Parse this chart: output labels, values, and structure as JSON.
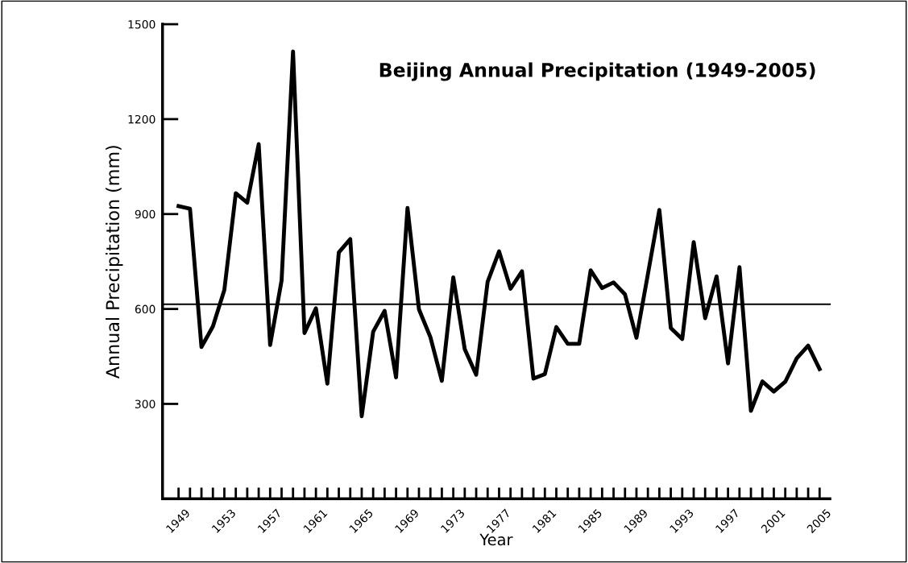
{
  "chart_data": {
    "type": "line",
    "title": "Beijing Annual Precipitation (1949-2005)",
    "xlabel": "Year",
    "ylabel": "Annual Precipitation (mm)",
    "x": [
      1949,
      1950,
      1951,
      1952,
      1953,
      1954,
      1955,
      1956,
      1957,
      1958,
      1959,
      1960,
      1961,
      1962,
      1963,
      1964,
      1965,
      1966,
      1967,
      1968,
      1969,
      1970,
      1971,
      1972,
      1973,
      1974,
      1975,
      1976,
      1977,
      1978,
      1979,
      1980,
      1981,
      1982,
      1983,
      1984,
      1985,
      1986,
      1987,
      1988,
      1989,
      1990,
      1991,
      1992,
      1993,
      1994,
      1995,
      1996,
      1997,
      1998,
      1999,
      2000,
      2001,
      2002,
      2003,
      2004,
      2005
    ],
    "series": [
      {
        "color": "#000000",
        "values": [
          925,
          917,
          480,
          545,
          660,
          966,
          936,
          1121,
          486,
          690,
          1414,
          524,
          602,
          364,
          779,
          821,
          261,
          528,
          594,
          384,
          919,
          599,
          511,
          373,
          700,
          473,
          392,
          686,
          782,
          664,
          719,
          380,
          394,
          543,
          490,
          490,
          722,
          666,
          684,
          646,
          509,
          710,
          913,
          540,
          505,
          811,
          571,
          703,
          428,
          732,
          278,
          371,
          339,
          370,
          444,
          484,
          410
        ]
      }
    ],
    "xlim": [
      1947.6,
      2005.9
    ],
    "ylim": [
      0,
      1500
    ],
    "yticks": [
      300,
      600,
      900,
      1200,
      1500
    ],
    "xticks": [
      1949,
      {
        "value": 1950,
        "label": null
      },
      {
        "value": 1951,
        "label": null
      },
      {
        "value": 1952,
        "label": null
      },
      1953,
      {
        "value": 1954,
        "label": null
      },
      {
        "value": 1955,
        "label": null
      },
      {
        "value": 1956,
        "label": null
      },
      1957,
      {
        "value": 1958,
        "label": null
      },
      {
        "value": 1959,
        "label": null
      },
      {
        "value": 1960,
        "label": null
      },
      1961,
      {
        "value": 1962,
        "label": null
      },
      {
        "value": 1963,
        "label": null
      },
      {
        "value": 1964,
        "label": null
      },
      1965,
      {
        "value": 1966,
        "label": null
      },
      {
        "value": 1967,
        "label": null
      },
      {
        "value": 1968,
        "label": null
      },
      1969,
      {
        "value": 1970,
        "label": null
      },
      {
        "value": 1971,
        "label": null
      },
      {
        "value": 1972,
        "label": null
      },
      1973,
      {
        "value": 1974,
        "label": null
      },
      {
        "value": 1975,
        "label": null
      },
      {
        "value": 1976,
        "label": null
      },
      1977,
      {
        "value": 1978,
        "label": null
      },
      {
        "value": 1979,
        "label": null
      },
      {
        "value": 1980,
        "label": null
      },
      1981,
      {
        "value": 1982,
        "label": null
      },
      {
        "value": 1983,
        "label": null
      },
      {
        "value": 1984,
        "label": null
      },
      1985,
      {
        "value": 1986,
        "label": null
      },
      {
        "value": 1987,
        "label": null
      },
      {
        "value": 1988,
        "label": null
      },
      1989,
      {
        "value": 1990,
        "label": null
      },
      {
        "value": 1991,
        "label": null
      },
      {
        "value": 1992,
        "label": null
      },
      1993,
      {
        "value": 1994,
        "label": null
      },
      {
        "value": 1995,
        "label": null
      },
      {
        "value": 1996,
        "label": null
      },
      1997,
      {
        "value": 1998,
        "label": null
      },
      {
        "value": 1999,
        "label": null
      },
      {
        "value": 2000,
        "label": null
      },
      2001,
      {
        "value": 2002,
        "label": null
      },
      {
        "value": 2003,
        "label": null
      },
      {
        "value": 2004,
        "label": null
      },
      2005
    ],
    "ref_lines": [
      {
        "axis": "y",
        "value": 615,
        "color": "#000000"
      }
    ],
    "grid": false,
    "legend": false,
    "marker": "none",
    "line_style": "solid"
  }
}
